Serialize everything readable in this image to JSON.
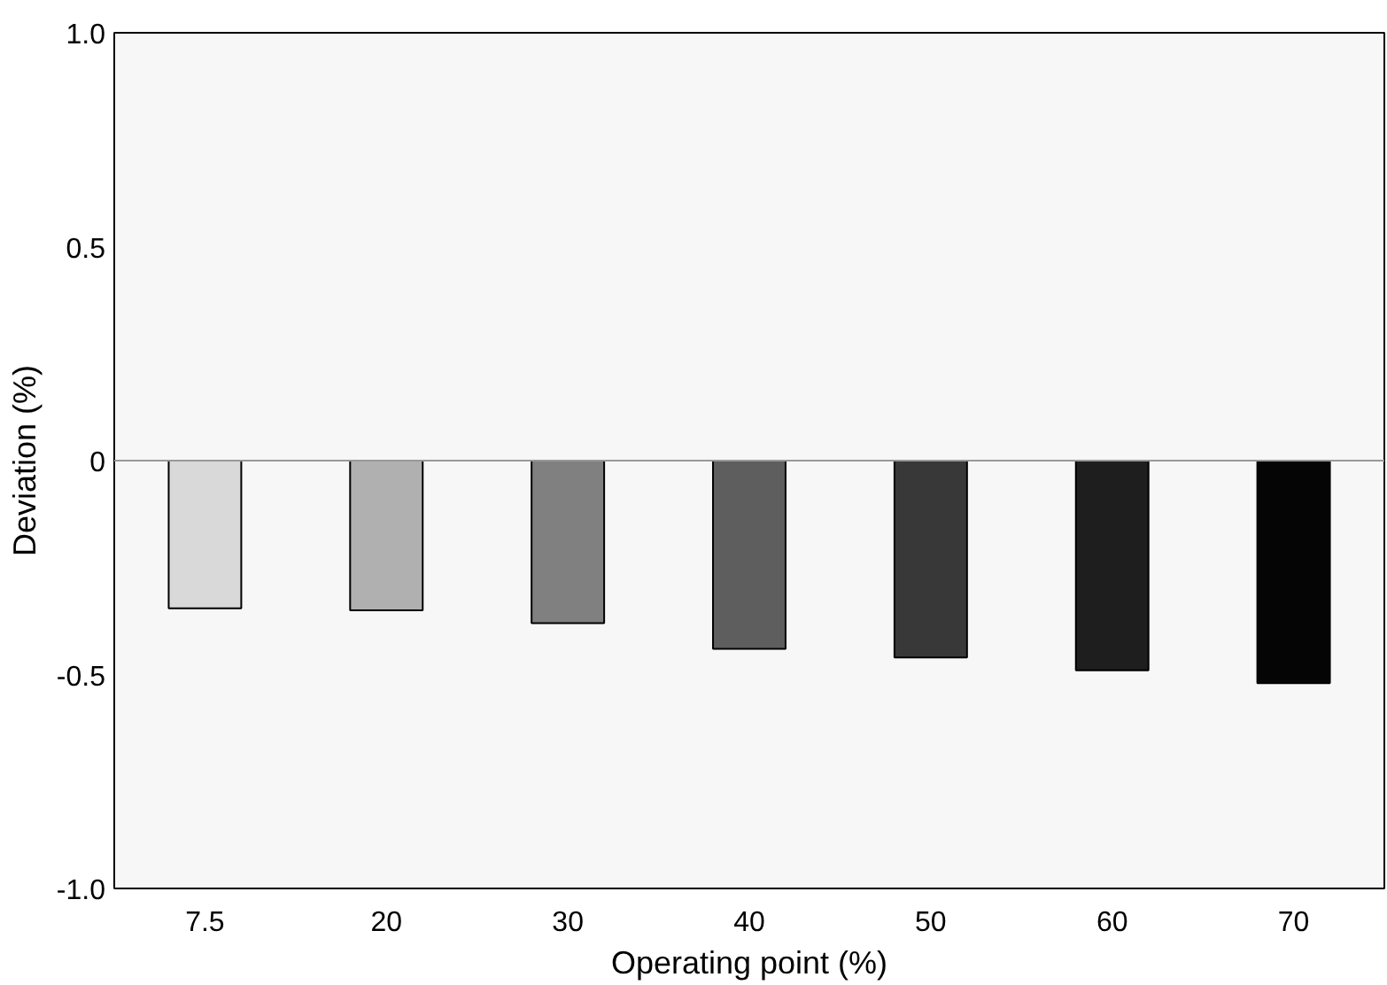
{
  "chart_data": {
    "type": "bar",
    "xlabel": "Operating point (%)",
    "ylabel": "Deviation (%)",
    "categories": [
      "7.5",
      "20",
      "30",
      "40",
      "50",
      "60",
      "70"
    ],
    "values": [
      -0.345,
      -0.35,
      -0.38,
      -0.44,
      -0.46,
      -0.49,
      -0.52
    ],
    "colors": [
      "#d9d9d9",
      "#b0b0b0",
      "#808080",
      "#5e5e5e",
      "#383838",
      "#1e1e1e",
      "#050505"
    ],
    "ylim": [
      -1.0,
      1.0
    ],
    "yticks": [
      {
        "value": -1.0,
        "label": "-1.0"
      },
      {
        "value": -0.5,
        "label": "-0.5"
      },
      0,
      {
        "value": 0.5,
        "label": "0.5"
      },
      {
        "value": 1.0,
        "label": "1.0"
      }
    ],
    "ref_lines": [
      {
        "axis": "y",
        "value": 0,
        "color": "#999999"
      }
    ],
    "grid": false
  }
}
